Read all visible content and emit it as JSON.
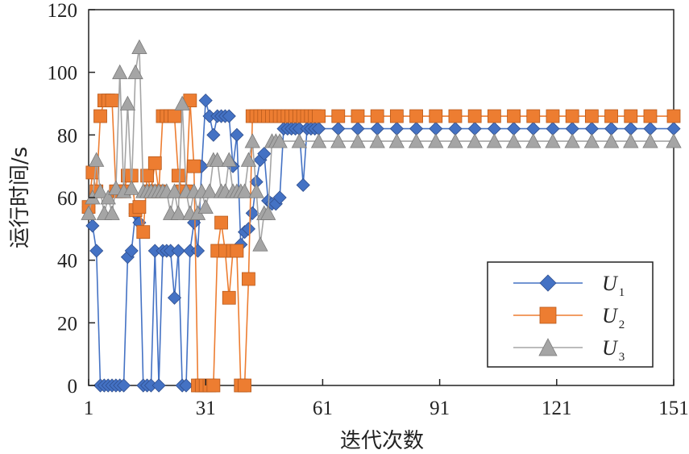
{
  "chart_data": {
    "type": "line",
    "xlabel": "迭代次数",
    "ylabel": "运行时间/s",
    "xlim": [
      1,
      151
    ],
    "ylim": [
      0,
      120
    ],
    "x_ticks": [
      1,
      31,
      61,
      91,
      121,
      151
    ],
    "y_ticks": [
      0,
      20,
      40,
      60,
      80,
      100,
      120
    ],
    "grid": false,
    "legend_position": "bottom-right",
    "colors": {
      "U1": "#4472c4",
      "U2": "#ed7d31",
      "U3": "#a5a5a5"
    },
    "series": [
      {
        "name": "U1",
        "legend_main": "U",
        "legend_sub": "1",
        "marker": "diamond",
        "x": [
          1,
          2,
          3,
          4,
          5,
          6,
          7,
          8,
          9,
          10,
          11,
          12,
          13,
          14,
          15,
          16,
          17,
          18,
          19,
          20,
          21,
          22,
          23,
          24,
          25,
          26,
          27,
          28,
          29,
          30,
          31,
          32,
          33,
          34,
          35,
          36,
          37,
          38,
          39,
          40,
          41,
          42,
          43,
          44,
          45,
          46,
          47,
          48,
          49,
          50,
          51,
          52,
          53,
          54,
          55,
          56,
          57,
          58,
          59,
          60,
          65,
          70,
          75,
          80,
          85,
          90,
          95,
          100,
          105,
          110,
          115,
          120,
          125,
          130,
          135,
          140,
          145,
          151
        ],
        "values": [
          57,
          51,
          43,
          0,
          0,
          0,
          0,
          0,
          0,
          0,
          41,
          43,
          55,
          52,
          0,
          0,
          0,
          43,
          0,
          43,
          43,
          43,
          28,
          43,
          0,
          0,
          43,
          52,
          43,
          70,
          91,
          86,
          80,
          86,
          86,
          86,
          86,
          70,
          80,
          45,
          49,
          50,
          55,
          65,
          72,
          74,
          59,
          58,
          58,
          60,
          82,
          82,
          82,
          82,
          82,
          64,
          82,
          82,
          82,
          82,
          82,
          82,
          82,
          82,
          82,
          82,
          82,
          82,
          82,
          82,
          82,
          82,
          82,
          82,
          82,
          82,
          82,
          82
        ]
      },
      {
        "name": "U2",
        "legend_main": "U",
        "legend_sub": "2",
        "marker": "square",
        "x": [
          1,
          2,
          3,
          4,
          5,
          6,
          7,
          8,
          9,
          10,
          11,
          12,
          13,
          14,
          15,
          16,
          17,
          18,
          19,
          20,
          21,
          22,
          23,
          24,
          25,
          26,
          27,
          28,
          29,
          30,
          31,
          32,
          33,
          34,
          35,
          36,
          37,
          38,
          39,
          40,
          41,
          42,
          43,
          44,
          45,
          46,
          47,
          48,
          49,
          50,
          51,
          52,
          53,
          54,
          55,
          56,
          57,
          58,
          59,
          60,
          65,
          70,
          75,
          80,
          85,
          90,
          95,
          100,
          105,
          110,
          115,
          120,
          125,
          130,
          135,
          140,
          145,
          151
        ],
        "values": [
          57,
          68,
          62,
          86,
          91,
          91,
          91,
          62,
          62,
          62,
          67,
          67,
          56,
          57,
          49,
          67,
          62,
          71,
          62,
          86,
          86,
          86,
          86,
          67,
          62,
          62,
          91,
          70,
          0,
          0,
          0,
          0,
          0,
          43,
          52,
          43,
          28,
          43,
          43,
          0,
          0,
          34,
          86,
          86,
          86,
          86,
          86,
          86,
          86,
          86,
          86,
          86,
          86,
          86,
          86,
          86,
          86,
          86,
          86,
          86,
          86,
          86,
          86,
          86,
          86,
          86,
          86,
          86,
          86,
          86,
          86,
          86,
          86,
          86,
          86,
          86,
          86,
          86
        ]
      },
      {
        "name": "U3",
        "legend_main": "U",
        "legend_sub": "3",
        "marker": "triangle",
        "x": [
          1,
          2,
          3,
          4,
          5,
          6,
          7,
          8,
          9,
          10,
          11,
          12,
          13,
          14,
          15,
          16,
          17,
          18,
          19,
          20,
          21,
          22,
          23,
          24,
          25,
          26,
          27,
          28,
          29,
          30,
          31,
          32,
          33,
          34,
          35,
          36,
          37,
          38,
          39,
          40,
          41,
          42,
          43,
          44,
          45,
          46,
          47,
          48,
          49,
          50,
          55,
          60,
          65,
          70,
          75,
          80,
          85,
          90,
          95,
          100,
          105,
          110,
          115,
          120,
          125,
          130,
          135,
          140,
          145,
          151
        ],
        "values": [
          55,
          60,
          72,
          62,
          55,
          60,
          55,
          63,
          100,
          62,
          90,
          63,
          100,
          108,
          62,
          62,
          62,
          62,
          62,
          62,
          62,
          55,
          62,
          55,
          90,
          62,
          55,
          62,
          55,
          62,
          57,
          62,
          72,
          72,
          62,
          62,
          72,
          62,
          62,
          62,
          62,
          72,
          78,
          62,
          45,
          55,
          55,
          78,
          78,
          78,
          78,
          78,
          78,
          78,
          78,
          78,
          78,
          78,
          78,
          78,
          78,
          78,
          78,
          78,
          78,
          78,
          78,
          78,
          78,
          78
        ]
      }
    ]
  }
}
